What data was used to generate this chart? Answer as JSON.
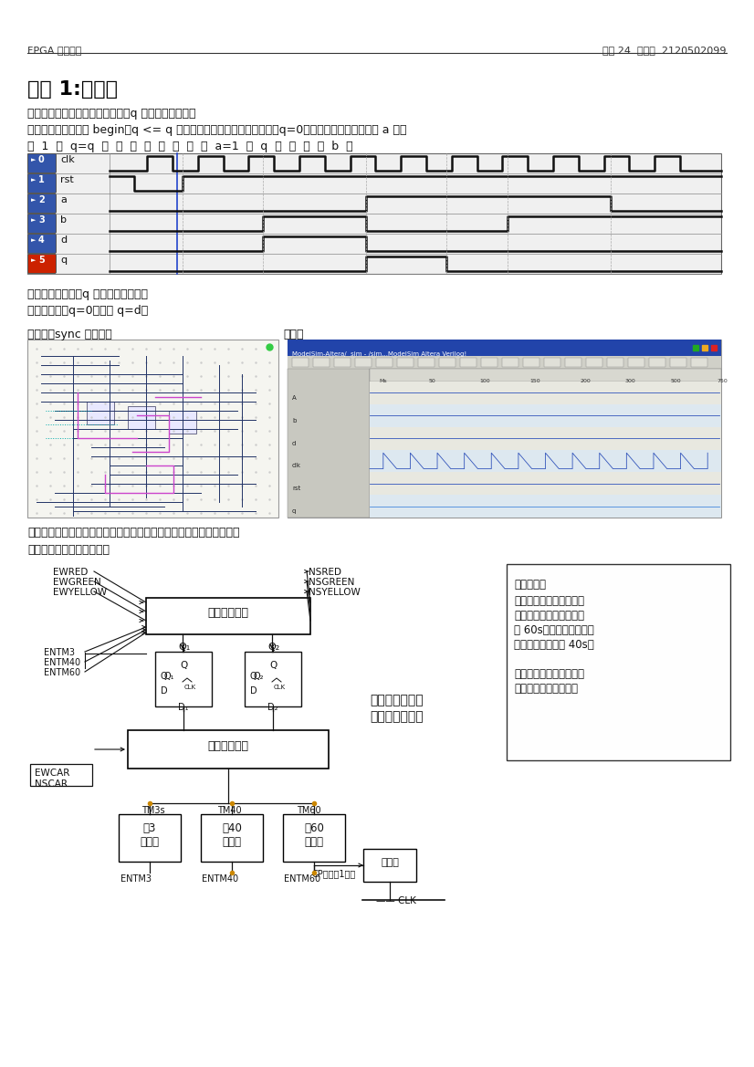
{
  "header_left": "FPGA 实验报告",
  "header_right": "信息 24  赵恒伟  2120502099",
  "title": "实验 1:状态机",
  "q1_line1": "问题一：你觉得上面这段代码中，q 到底在怎样变化？",
  "q1_line2": "答：首先语句中缺少 begin，q <= q 也不合理；如果有异步复位信号，q=0；否则，如果有上升沿且 a 不等",
  "q1_line3": "于  1  ，  q=q  ；  如  果  有  上  升  沿  且  a=1  ，  q  直  接  等  于  b  ：",
  "q2_line1": "问题二：本页中，q 到底在怎样变化？",
  "q2_line2": "答：复位时，q=0；否则 q=d。",
  "q3_line1": "问题三：sync 电路图：",
  "q3_line2": "仿真：",
  "caption": "该电路使输入信号与时钟同步，并产生稳定脉冲信号，进行节拍分配。",
  "section4": "四、红路灯电路系统框图：",
  "signal_names": [
    "clk",
    "rst",
    "a",
    "b",
    "d",
    "q"
  ],
  "signal_ids": [
    "0",
    "1",
    "2",
    "3",
    "4",
    "5"
  ],
  "icon_colors": [
    "#3355aa",
    "#3355aa",
    "#3355aa",
    "#3355aa",
    "#3355aa",
    "#cc2200"
  ],
  "note_title": "问题分析：",
  "note_lines": [
    "东西南北都有车时，状态",
    "转换时，东西绿灯时间长",
    "于 60s；三秒后，南北通",
    "行，绿灯时间少于 40s。",
    "",
    "计数器不能使用同一个，",
    "但可以减少触发器数目"
  ],
  "block_output": "输出组合逻辑",
  "block_control": "控制组合逻辑",
  "block_mod3": "模3\n计数器",
  "block_mod40": "模40\n计数器",
  "block_mod60": "模60\n计数器",
  "block_divider": "分频器",
  "label_crossroad": "十字路口交通灯",
  "label_controller": "控制器逻辑框图"
}
